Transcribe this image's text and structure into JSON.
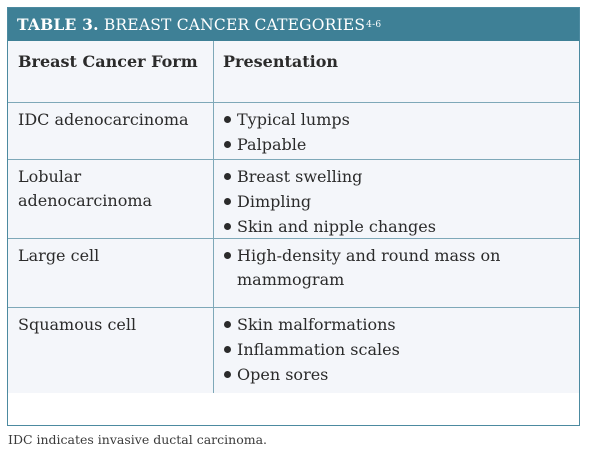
{
  "table": {
    "title_number": "TABLE 3.",
    "title_text": " BREAST CANCER CATEGORIES",
    "title_refs": "4-6",
    "col_form_header": "Breast Cancer Form",
    "col_presentation_header": "Presentation",
    "rows": [
      {
        "form": "IDC adenocarcinoma",
        "presentation": [
          "Typical lumps",
          "Palpable"
        ]
      },
      {
        "form": "Lobular adenocarcinoma",
        "presentation": [
          "Breast swelling",
          "Dimpling",
          "Skin and nipple changes"
        ]
      },
      {
        "form": "Large cell",
        "presentation": [
          "High-density and round mass on mammogram"
        ]
      },
      {
        "form": "Squamous cell",
        "presentation": [
          "Skin malformations",
          "Inflammation scales",
          "Open sores"
        ]
      }
    ]
  },
  "footnote": "IDC indicates invasive ductal carcinoma.",
  "colors": {
    "title_bar": "#3e8096",
    "table_background": "#f4f6fa",
    "border": "#7ea8b8"
  }
}
